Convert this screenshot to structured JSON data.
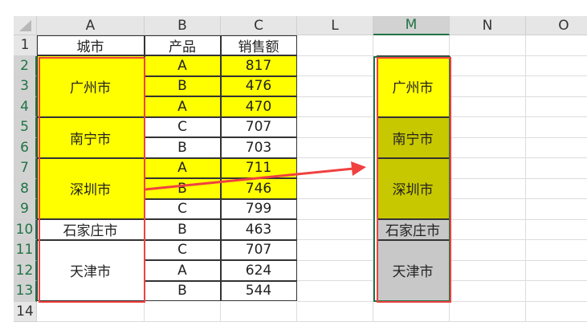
{
  "columns": [
    "A",
    "B",
    "C",
    "L",
    "M",
    "N",
    "O"
  ],
  "selected_column": "M",
  "rows": [
    "1",
    "2",
    "3",
    "4",
    "5",
    "6",
    "7",
    "8",
    "9",
    "10",
    "11",
    "12",
    "13",
    "14"
  ],
  "headers": {
    "A": "城市",
    "B": "产品",
    "C": "销售额"
  },
  "products": [
    "A",
    "B",
    "A",
    "C",
    "B",
    "A",
    "B",
    "C",
    "B",
    "C",
    "A",
    "B"
  ],
  "sales": [
    "817",
    "476",
    "470",
    "707",
    "703",
    "711",
    "746",
    "799",
    "463",
    "707",
    "624",
    "544"
  ],
  "cities": [
    {
      "name": "广州市",
      "start": 2,
      "end": 4,
      "fill": "#ffff00"
    },
    {
      "name": "南宁市",
      "start": 5,
      "end": 6,
      "fill": "#ffff00"
    },
    {
      "name": "深圳市",
      "start": 7,
      "end": 9,
      "fill": "#ffff00"
    },
    {
      "name": "石家庄市",
      "start": 10,
      "end": 10,
      "fill": "#ffffff"
    },
    {
      "name": "天津市",
      "start": 11,
      "end": 13,
      "fill": "#ffffff"
    }
  ],
  "yellow_rows_bc": [
    2,
    3,
    4,
    7,
    8
  ],
  "result_cells": [
    {
      "name": "广州市",
      "start": 2,
      "end": 4,
      "fill": "#ffff00"
    },
    {
      "name": "南宁市",
      "start": 5,
      "end": 6,
      "fill": "#c8c800"
    },
    {
      "name": "深圳市",
      "start": 7,
      "end": 9,
      "fill": "#c8c800"
    },
    {
      "name": "石家庄市",
      "start": 10,
      "end": 10,
      "fill": "#c8c8c8"
    },
    {
      "name": "天津市",
      "start": 11,
      "end": 13,
      "fill": "#c8c8c8"
    }
  ],
  "colors": {
    "highlight": "#ffff00",
    "arrow": "#f04040",
    "selection": "#217346"
  }
}
